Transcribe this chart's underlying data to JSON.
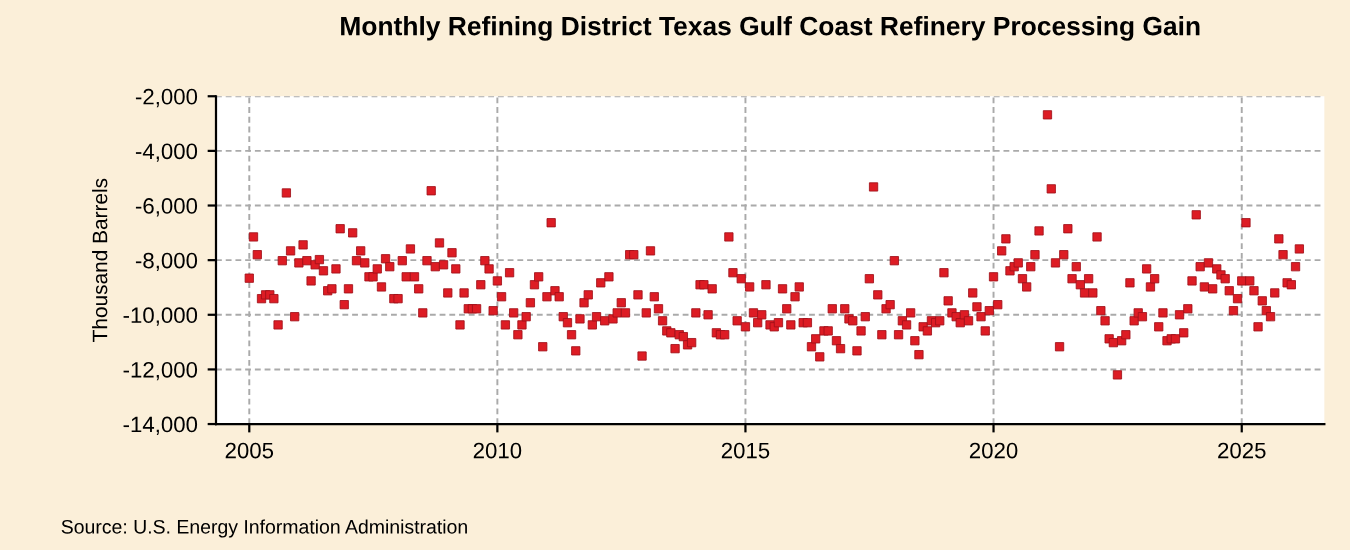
{
  "chart_data": {
    "type": "scatter",
    "title": "Monthly Refining District Texas Gulf Coast Refinery Processing Gain",
    "ylabel": "Thousand Barrels",
    "annotations": [
      "Source: U.S. Energy Information Administration"
    ],
    "x": [
      "2005-01",
      "2005-02",
      "2005-03",
      "2005-04",
      "2005-05",
      "2005-06",
      "2005-07",
      "2005-08",
      "2005-09",
      "2005-10",
      "2005-11",
      "2005-12",
      "2006-01",
      "2006-02",
      "2006-03",
      "2006-04",
      "2006-05",
      "2006-06",
      "2006-07",
      "2006-08",
      "2006-09",
      "2006-10",
      "2006-11",
      "2006-12",
      "2007-01",
      "2007-02",
      "2007-03",
      "2007-04",
      "2007-05",
      "2007-06",
      "2007-07",
      "2007-08",
      "2007-09",
      "2007-10",
      "2007-11",
      "2007-12",
      "2008-01",
      "2008-02",
      "2008-03",
      "2008-04",
      "2008-05",
      "2008-06",
      "2008-07",
      "2008-08",
      "2008-09",
      "2008-10",
      "2008-11",
      "2008-12",
      "2009-01",
      "2009-02",
      "2009-03",
      "2009-04",
      "2009-05",
      "2009-06",
      "2009-07",
      "2009-08",
      "2009-09",
      "2009-10",
      "2009-11",
      "2009-12",
      "2010-01",
      "2010-02",
      "2010-03",
      "2010-04",
      "2010-05",
      "2010-06",
      "2010-07",
      "2010-08",
      "2010-09",
      "2010-10",
      "2010-11",
      "2010-12",
      "2011-01",
      "2011-02",
      "2011-03",
      "2011-04",
      "2011-05",
      "2011-06",
      "2011-07",
      "2011-08",
      "2011-09",
      "2011-10",
      "2011-11",
      "2011-12",
      "2012-01",
      "2012-02",
      "2012-03",
      "2012-04",
      "2012-05",
      "2012-06",
      "2012-07",
      "2012-08",
      "2012-09",
      "2012-10",
      "2012-11",
      "2012-12",
      "2013-01",
      "2013-02",
      "2013-03",
      "2013-04",
      "2013-05",
      "2013-06",
      "2013-07",
      "2013-08",
      "2013-09",
      "2013-10",
      "2013-11",
      "2013-12",
      "2014-01",
      "2014-02",
      "2014-03",
      "2014-04",
      "2014-05",
      "2014-06",
      "2014-07",
      "2014-08",
      "2014-09",
      "2014-10",
      "2014-11",
      "2014-12",
      "2015-01",
      "2015-02",
      "2015-03",
      "2015-04",
      "2015-05",
      "2015-06",
      "2015-07",
      "2015-08",
      "2015-09",
      "2015-10",
      "2015-11",
      "2015-12",
      "2016-01",
      "2016-02",
      "2016-03",
      "2016-04",
      "2016-05",
      "2016-06",
      "2016-07",
      "2016-08",
      "2016-09",
      "2016-10",
      "2016-11",
      "2016-12",
      "2017-01",
      "2017-02",
      "2017-03",
      "2017-04",
      "2017-05",
      "2017-06",
      "2017-07",
      "2017-08",
      "2017-09",
      "2017-10",
      "2017-11",
      "2017-12",
      "2018-01",
      "2018-02",
      "2018-03",
      "2018-04",
      "2018-05",
      "2018-06",
      "2018-07",
      "2018-08",
      "2018-09",
      "2018-10",
      "2018-11",
      "2018-12",
      "2019-01",
      "2019-02",
      "2019-03",
      "2019-04",
      "2019-05",
      "2019-06",
      "2019-07",
      "2019-08",
      "2019-09",
      "2019-10",
      "2019-11",
      "2019-12",
      "2020-01",
      "2020-02",
      "2020-03",
      "2020-04",
      "2020-05",
      "2020-06",
      "2020-07",
      "2020-08",
      "2020-09",
      "2020-10",
      "2020-11",
      "2020-12",
      "2021-02",
      "2021-03",
      "2021-04",
      "2021-05",
      "2021-06",
      "2021-07",
      "2021-08",
      "2021-09",
      "2021-10",
      "2021-11",
      "2021-12",
      "2022-01",
      "2022-02",
      "2022-03",
      "2022-04",
      "2022-05",
      "2022-06",
      "2022-07",
      "2022-08",
      "2022-09",
      "2022-10",
      "2022-11",
      "2022-12",
      "2023-01",
      "2023-02",
      "2023-03",
      "2023-04",
      "2023-05",
      "2023-06",
      "2023-07",
      "2023-08",
      "2023-09",
      "2023-10",
      "2023-11",
      "2023-12",
      "2024-01",
      "2024-02",
      "2024-03",
      "2024-04",
      "2024-05",
      "2024-06",
      "2024-07",
      "2024-08",
      "2024-09",
      "2024-10",
      "2024-11",
      "2024-12",
      "2025-01",
      "2025-02",
      "2025-03",
      "2025-04",
      "2025-05",
      "2025-06",
      "2025-07",
      "2025-08",
      "2025-09",
      "2025-10",
      "2025-11",
      "2025-12",
      "2026-01",
      "2026-02",
      "2026-03"
    ],
    "values": [
      -8660,
      -7150,
      -7800,
      -9410,
      -9270,
      -9270,
      -9410,
      -10370,
      -8020,
      -5540,
      -7660,
      -10070,
      -8100,
      -7440,
      -8020,
      -8760,
      -8170,
      -7980,
      -8390,
      -9120,
      -9050,
      -8320,
      -6850,
      -9630,
      -9050,
      -7000,
      -8020,
      -7660,
      -8100,
      -8610,
      -8610,
      -8320,
      -8980,
      -7950,
      -8240,
      -9410,
      -9410,
      -8020,
      -8610,
      -7590,
      -8610,
      -9050,
      -9930,
      -8020,
      -5460,
      -8240,
      -7370,
      -8170,
      -9200,
      -7730,
      -8320,
      -10370,
      -9200,
      -9780,
      -9780,
      -9780,
      -8900,
      -8020,
      -8320,
      -9850,
      -8760,
      -9340,
      -10370,
      -8460,
      -9930,
      -10730,
      -10370,
      -10070,
      -9560,
      -8900,
      -8610,
      -11170,
      -9340,
      -6630,
      -9120,
      -9340,
      -10070,
      -10290,
      -10730,
      -11320,
      -10150,
      -9560,
      -9270,
      -10370,
      -10070,
      -8830,
      -10220,
      -8610,
      -10150,
      -9930,
      -9560,
      -9930,
      -7800,
      -7800,
      -9270,
      -11510,
      -9930,
      -7660,
      -9340,
      -9780,
      -10220,
      -10590,
      -10660,
      -11240,
      -10730,
      -10800,
      -11100,
      -11020,
      -9930,
      -8900,
      -8900,
      -10000,
      -9050,
      -10660,
      -10730,
      -10730,
      -7150,
      -8460,
      -10220,
      -8680,
      -10440,
      -8980,
      -9930,
      -10290,
      -10000,
      -8900,
      -10370,
      -10440,
      -10290,
      -9050,
      -9780,
      -10370,
      -9340,
      -8980,
      -10290,
      -10290,
      -11170,
      -10880,
      -11540,
      -10590,
      -10590,
      -9780,
      -10950,
      -11240,
      -9780,
      -10150,
      -10220,
      -11320,
      -10590,
      -10070,
      -8680,
      -5320,
      -9270,
      -10730,
      -9780,
      -9630,
      -8020,
      -10730,
      -10220,
      -10370,
      -9930,
      -10950,
      -11460,
      -10440,
      -10590,
      -10220,
      -10290,
      -10220,
      -8460,
      -9490,
      -9930,
      -10070,
      -10290,
      -10000,
      -10220,
      -9200,
      -9710,
      -10070,
      -10590,
      -9850,
      -8610,
      -9630,
      -7660,
      -7220,
      -8390,
      -8240,
      -8100,
      -8680,
      -8980,
      -8240,
      -7800,
      -6930,
      -2680,
      -5390,
      -8100,
      -11170,
      -7800,
      -6850,
      -8680,
      -8240,
      -8900,
      -9200,
      -8680,
      -9200,
      -7150,
      -9850,
      -10220,
      -10880,
      -11020,
      -12200,
      -10950,
      -10730,
      -8830,
      -10220,
      -9930,
      -10070,
      -8320,
      -8980,
      -8680,
      -10440,
      -9930,
      -10950,
      -10880,
      -10880,
      -10000,
      -10660,
      -9780,
      -8760,
      -6340,
      -8240,
      -8980,
      -8100,
      -9050,
      -8320,
      -8540,
      -8680,
      -9120,
      -9850,
      -9410,
      -8760,
      -6630,
      -8760,
      -9120,
      -10440,
      -9490,
      -9850,
      -10070,
      -9200,
      -7220,
      -7800,
      -8830,
      -8900,
      -8240,
      -7590
    ],
    "color": "#dd1c24",
    "marker": "square",
    "xlim": [
      "2004-05",
      "2026-09"
    ],
    "xticks": [
      {
        "value": "2005-01",
        "label": "2005"
      },
      {
        "value": "2010-01",
        "label": "2010"
      },
      {
        "value": "2015-01",
        "label": "2015"
      },
      {
        "value": "2020-01",
        "label": "2020"
      },
      {
        "value": "2025-01",
        "label": "2025"
      }
    ],
    "ylim": [
      -14000,
      -2000
    ],
    "yticks": [
      {
        "value": -14000,
        "label": "-14,000"
      },
      {
        "value": -12000,
        "label": "-12,000"
      },
      {
        "value": -10000,
        "label": "-10,000"
      },
      {
        "value": -8000,
        "label": "-8,000"
      },
      {
        "value": -6000,
        "label": "-6,000"
      },
      {
        "value": -4000,
        "label": "-4,000"
      },
      {
        "value": -2000,
        "label": "-2,000"
      }
    ],
    "grid": true
  }
}
